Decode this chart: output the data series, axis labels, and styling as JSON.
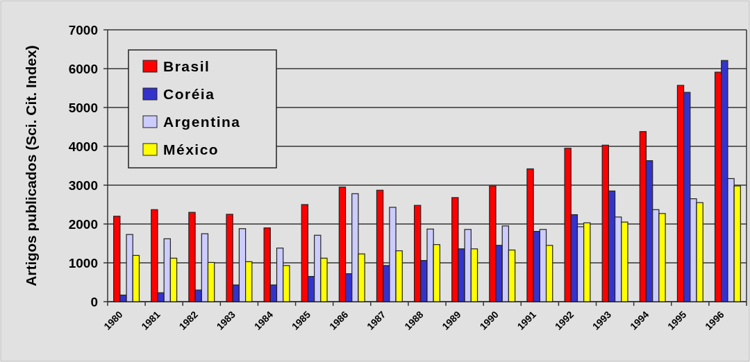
{
  "chart_data": {
    "type": "bar",
    "ylabel": "Artigos publicados (Sci. Cit. Index)",
    "categories": [
      "1980",
      "1981",
      "1982",
      "1983",
      "1984",
      "1985",
      "1986",
      "1987",
      "1988",
      "1989",
      "1990",
      "1991",
      "1992",
      "1993",
      "1994",
      "1995",
      "1996"
    ],
    "series": [
      {
        "name": "Brasil",
        "color": "#ff0000",
        "values": [
          2200,
          2370,
          2300,
          2250,
          1900,
          2500,
          2950,
          2870,
          2480,
          2680,
          2980,
          3420,
          3950,
          4030,
          4380,
          5570,
          5910
        ]
      },
      {
        "name": "Coréia",
        "color": "#3333cc",
        "values": [
          170,
          230,
          300,
          430,
          430,
          650,
          720,
          930,
          1060,
          1360,
          1450,
          1810,
          2240,
          2850,
          3630,
          5390,
          6210
        ]
      },
      {
        "name": "Argentina",
        "color": "#ccccff",
        "values": [
          1730,
          1620,
          1750,
          1880,
          1380,
          1710,
          2780,
          2430,
          1870,
          1860,
          1950,
          1860,
          1930,
          2180,
          2370,
          2650,
          3170
        ]
      },
      {
        "name": "México",
        "color": "#ffff00",
        "values": [
          1190,
          1120,
          1010,
          1030,
          930,
          1120,
          1230,
          1310,
          1470,
          1360,
          1330,
          1450,
          2030,
          2050,
          2270,
          2550,
          2980
        ]
      }
    ],
    "ylim": [
      0,
      7000
    ],
    "yticks": [
      0,
      1000,
      2000,
      3000,
      4000,
      5000,
      6000,
      7000
    ],
    "grid": "y",
    "legend": "top left"
  }
}
